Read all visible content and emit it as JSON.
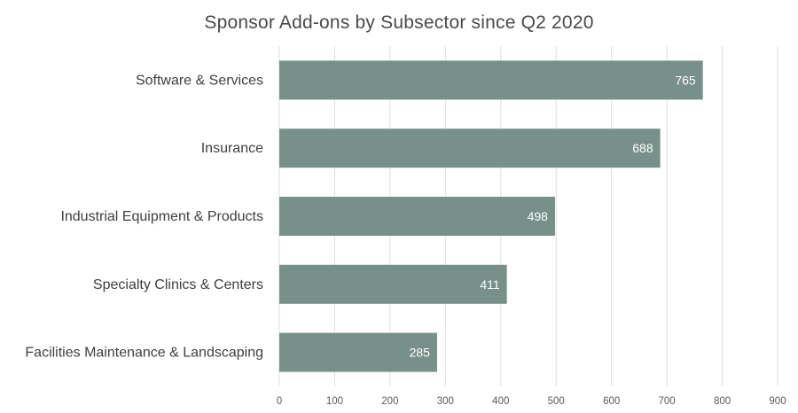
{
  "chart_data": {
    "type": "bar",
    "orientation": "horizontal",
    "title": "Sponsor Add-ons by Subsector since Q2 2020",
    "xlabel": "",
    "ylabel": "",
    "categories": [
      "Software & Services",
      "Insurance",
      "Industrial Equipment & Products",
      "Specialty Clinics & Centers",
      "Facilities Maintenance & Landscaping"
    ],
    "values": [
      765,
      688,
      498,
      411,
      285
    ],
    "xlim": [
      0,
      900
    ],
    "xticks": [
      0,
      100,
      200,
      300,
      400,
      500,
      600,
      700,
      800,
      900
    ],
    "grid": "vertical",
    "legend": "none",
    "bar_color": "#77918a",
    "value_label_color": "#ffffff",
    "gridline_color": "#dedede"
  }
}
